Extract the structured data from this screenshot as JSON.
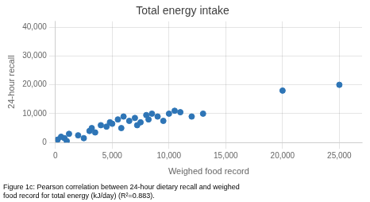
{
  "chart_data": {
    "type": "scatter",
    "title": "Total energy intake",
    "xlabel": "Weighed food record",
    "ylabel": "24-hour recall",
    "caption": "Figure 1c: Pearson correlation between 24-hour dietary recall and weighed\nfood record for total energy (kJ/day) (R²=0.883).",
    "x": [
      200,
      500,
      800,
      1000,
      1200,
      2000,
      2500,
      3000,
      3200,
      3500,
      4000,
      4500,
      4800,
      5000,
      5500,
      5800,
      6000,
      6500,
      7000,
      7200,
      7500,
      8000,
      8200,
      8500,
      9000,
      9500,
      10000,
      10500,
      11000,
      12000,
      13000,
      20000,
      25000
    ],
    "values": [
      1000,
      2000,
      1500,
      500,
      3000,
      2500,
      1500,
      4000,
      5000,
      3500,
      6000,
      5500,
      7000,
      6500,
      8000,
      5000,
      9000,
      7500,
      8500,
      6000,
      7000,
      9500,
      8000,
      10000,
      9000,
      7500,
      10000,
      11000,
      10500,
      9000,
      10000,
      18000,
      20000
    ],
    "color": "#2E75B6",
    "xlim": [
      0,
      27000
    ],
    "ylim": [
      0,
      42000
    ],
    "xticks": [
      0,
      {
        "value": 5000,
        "label": "5,000"
      },
      {
        "value": 10000,
        "label": "10,000"
      },
      {
        "value": 15000,
        "label": "15,000"
      },
      {
        "value": 20000,
        "label": "20,000"
      },
      {
        "value": 25000,
        "label": "25,000"
      }
    ],
    "yticks": [
      0,
      {
        "value": 10000,
        "label": "10,000"
      },
      {
        "value": 20000,
        "label": "20,000"
      },
      {
        "value": 30000,
        "label": "30,000"
      },
      {
        "value": 40000,
        "label": "40,000"
      }
    ],
    "grid": true
  }
}
